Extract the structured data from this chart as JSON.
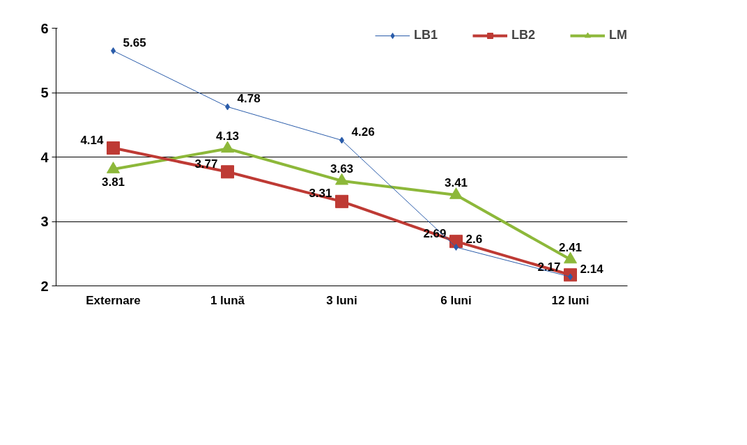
{
  "chart_data": {
    "type": "line",
    "categories": [
      "Externare",
      "1 lună",
      "3 luni",
      "6 luni",
      "12 luni"
    ],
    "series": [
      {
        "name": "LB1",
        "color": "#2a5caa",
        "values": [
          5.65,
          4.78,
          4.26,
          2.6,
          2.14
        ],
        "marker": "diamond"
      },
      {
        "name": "LB2",
        "color": "#be3a34",
        "values": [
          4.14,
          3.77,
          3.31,
          2.69,
          2.17
        ],
        "marker": "square"
      },
      {
        "name": "LM",
        "color": "#8db83a",
        "values": [
          3.81,
          4.13,
          3.63,
          3.41,
          2.41
        ],
        "marker": "triangle"
      }
    ],
    "ylim": [
      2,
      6
    ],
    "yticks": [
      2,
      3,
      4,
      5,
      6
    ],
    "grid": "y",
    "legend": "top right",
    "data_labels": true
  }
}
